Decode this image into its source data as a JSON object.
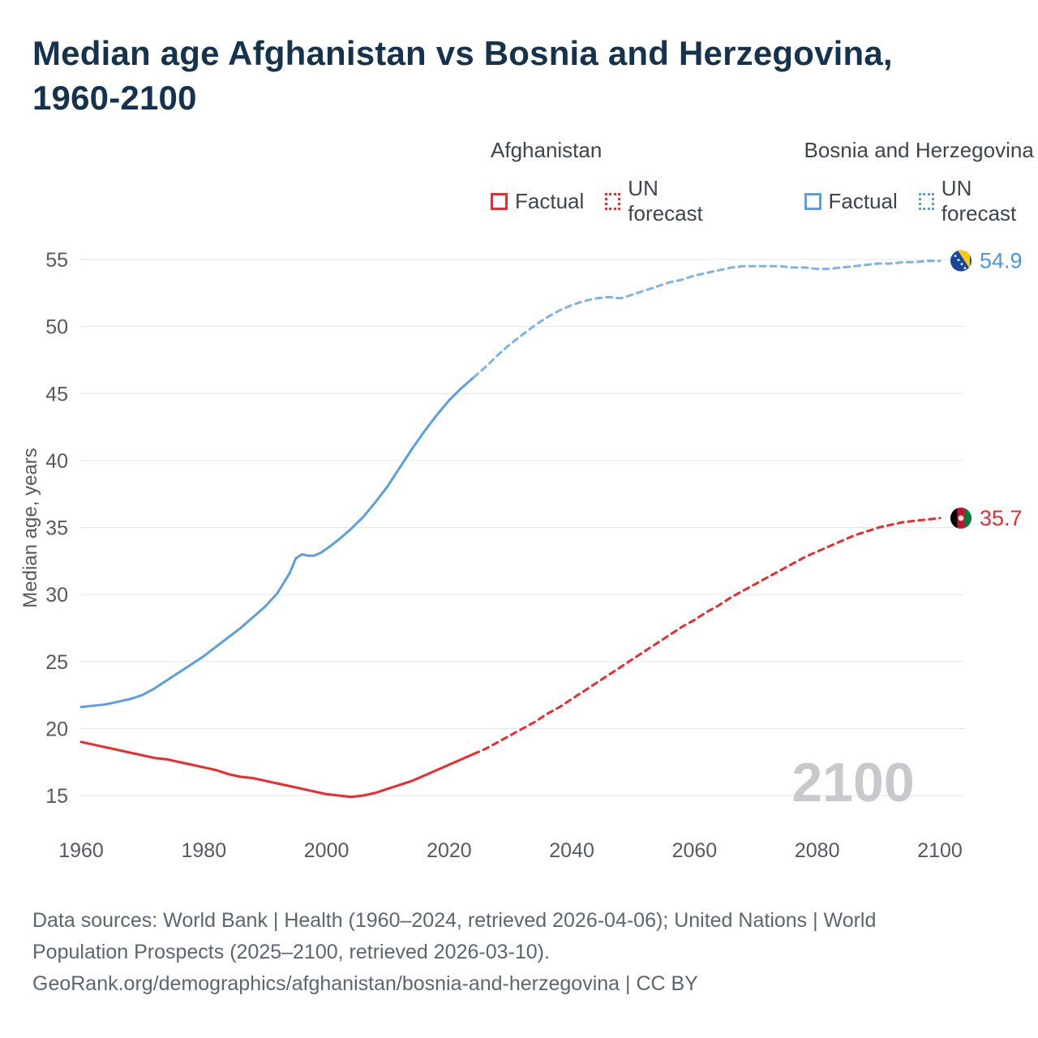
{
  "title": "Median age Afghanistan vs Bosnia and Herzegovina, 1960-2100",
  "legend": {
    "position": "top-right",
    "groups": [
      {
        "name": "Afghanistan",
        "color": "#ee2a2e",
        "items": [
          {
            "label": "Factual",
            "style": "solid"
          },
          {
            "label": "UN forecast",
            "style": "dotted"
          }
        ]
      },
      {
        "name": "Bosnia and Herzegovina",
        "color": "#5b9fe3",
        "items": [
          {
            "label": "Factual",
            "style": "solid"
          },
          {
            "label": "UN forecast",
            "style": "dotted"
          }
        ]
      }
    ]
  },
  "chart_data": {
    "type": "line",
    "title": "Median age Afghanistan vs Bosnia and Herzegovina, 1960-2100",
    "xlabel": "",
    "ylabel": "Median age, years",
    "xlim": [
      1960,
      2100
    ],
    "ylim": [
      15,
      55
    ],
    "x_ticks": [
      1960,
      1980,
      2000,
      2020,
      2040,
      2060,
      2080,
      2100
    ],
    "y_ticks": [
      15,
      20,
      25,
      30,
      35,
      40,
      45,
      50,
      55
    ],
    "grid": "horizontal",
    "legend_position": "top-right",
    "watermark": "2100",
    "series": [
      {
        "id": "afghanistan-factual",
        "name": "Afghanistan Factual",
        "color": "#ee2a2e",
        "dash": "solid",
        "points": [
          [
            1960,
            19.0
          ],
          [
            1962,
            18.8
          ],
          [
            1964,
            18.6
          ],
          [
            1966,
            18.4
          ],
          [
            1968,
            18.2
          ],
          [
            1970,
            18.0
          ],
          [
            1972,
            17.8
          ],
          [
            1974,
            17.7
          ],
          [
            1976,
            17.5
          ],
          [
            1978,
            17.3
          ],
          [
            1980,
            17.1
          ],
          [
            1982,
            16.9
          ],
          [
            1984,
            16.6
          ],
          [
            1986,
            16.4
          ],
          [
            1988,
            16.3
          ],
          [
            1990,
            16.1
          ],
          [
            1992,
            15.9
          ],
          [
            1994,
            15.7
          ],
          [
            1996,
            15.5
          ],
          [
            1998,
            15.3
          ],
          [
            2000,
            15.1
          ],
          [
            2002,
            15.0
          ],
          [
            2004,
            14.9
          ],
          [
            2006,
            15.0
          ],
          [
            2008,
            15.2
          ],
          [
            2010,
            15.5
          ],
          [
            2012,
            15.8
          ],
          [
            2014,
            16.1
          ],
          [
            2016,
            16.5
          ],
          [
            2018,
            16.9
          ],
          [
            2020,
            17.3
          ],
          [
            2022,
            17.7
          ],
          [
            2024,
            18.1
          ]
        ]
      },
      {
        "id": "afghanistan-forecast",
        "name": "Afghanistan UN forecast",
        "color": "#ee2a2e",
        "dash": "dashed",
        "points": [
          [
            2024,
            18.1
          ],
          [
            2026,
            18.5
          ],
          [
            2028,
            19.0
          ],
          [
            2030,
            19.5
          ],
          [
            2032,
            20.0
          ],
          [
            2034,
            20.5
          ],
          [
            2036,
            21.1
          ],
          [
            2038,
            21.6
          ],
          [
            2040,
            22.2
          ],
          [
            2042,
            22.8
          ],
          [
            2044,
            23.4
          ],
          [
            2046,
            24.0
          ],
          [
            2048,
            24.6
          ],
          [
            2050,
            25.2
          ],
          [
            2052,
            25.8
          ],
          [
            2054,
            26.4
          ],
          [
            2056,
            27.0
          ],
          [
            2058,
            27.6
          ],
          [
            2060,
            28.1
          ],
          [
            2062,
            28.7
          ],
          [
            2064,
            29.2
          ],
          [
            2066,
            29.8
          ],
          [
            2068,
            30.3
          ],
          [
            2070,
            30.8
          ],
          [
            2072,
            31.3
          ],
          [
            2074,
            31.8
          ],
          [
            2076,
            32.3
          ],
          [
            2078,
            32.8
          ],
          [
            2080,
            33.2
          ],
          [
            2082,
            33.6
          ],
          [
            2084,
            34.0
          ],
          [
            2086,
            34.4
          ],
          [
            2088,
            34.7
          ],
          [
            2090,
            35.0
          ],
          [
            2092,
            35.2
          ],
          [
            2094,
            35.4
          ],
          [
            2096,
            35.5
          ],
          [
            2098,
            35.6
          ],
          [
            2100,
            35.7
          ]
        ]
      },
      {
        "id": "bosnia-factual",
        "name": "Bosnia and Herzegovina Factual",
        "color": "#5b9fe3",
        "dash": "solid",
        "points": [
          [
            1960,
            21.6
          ],
          [
            1962,
            21.7
          ],
          [
            1964,
            21.8
          ],
          [
            1966,
            22.0
          ],
          [
            1968,
            22.2
          ],
          [
            1970,
            22.5
          ],
          [
            1972,
            23.0
          ],
          [
            1974,
            23.6
          ],
          [
            1976,
            24.2
          ],
          [
            1978,
            24.8
          ],
          [
            1980,
            25.4
          ],
          [
            1982,
            26.1
          ],
          [
            1984,
            26.8
          ],
          [
            1986,
            27.5
          ],
          [
            1988,
            28.3
          ],
          [
            1990,
            29.1
          ],
          [
            1992,
            30.1
          ],
          [
            1994,
            31.6
          ],
          [
            1995,
            32.7
          ],
          [
            1996,
            33.0
          ],
          [
            1997,
            32.9
          ],
          [
            1998,
            32.9
          ],
          [
            1999,
            33.1
          ],
          [
            2000,
            33.4
          ],
          [
            2002,
            34.1
          ],
          [
            2004,
            34.9
          ],
          [
            2006,
            35.8
          ],
          [
            2008,
            36.9
          ],
          [
            2010,
            38.1
          ],
          [
            2012,
            39.5
          ],
          [
            2014,
            40.9
          ],
          [
            2016,
            42.2
          ],
          [
            2018,
            43.4
          ],
          [
            2020,
            44.5
          ],
          [
            2022,
            45.4
          ],
          [
            2024,
            46.2
          ]
        ]
      },
      {
        "id": "bosnia-forecast",
        "name": "Bosnia and Herzegovina UN forecast",
        "color": "#7db3ea",
        "dash": "dashed",
        "points": [
          [
            2024,
            46.2
          ],
          [
            2026,
            47.0
          ],
          [
            2028,
            47.9
          ],
          [
            2030,
            48.7
          ],
          [
            2032,
            49.4
          ],
          [
            2034,
            50.1
          ],
          [
            2036,
            50.7
          ],
          [
            2038,
            51.2
          ],
          [
            2040,
            51.6
          ],
          [
            2042,
            51.9
          ],
          [
            2044,
            52.1
          ],
          [
            2046,
            52.2
          ],
          [
            2048,
            52.1
          ],
          [
            2050,
            52.4
          ],
          [
            2052,
            52.7
          ],
          [
            2054,
            53.0
          ],
          [
            2056,
            53.3
          ],
          [
            2058,
            53.5
          ],
          [
            2060,
            53.8
          ],
          [
            2062,
            54.0
          ],
          [
            2064,
            54.2
          ],
          [
            2066,
            54.4
          ],
          [
            2068,
            54.5
          ],
          [
            2070,
            54.5
          ],
          [
            2072,
            54.5
          ],
          [
            2074,
            54.5
          ],
          [
            2076,
            54.4
          ],
          [
            2078,
            54.4
          ],
          [
            2080,
            54.3
          ],
          [
            2082,
            54.3
          ],
          [
            2084,
            54.4
          ],
          [
            2086,
            54.5
          ],
          [
            2088,
            54.6
          ],
          [
            2090,
            54.7
          ],
          [
            2092,
            54.7
          ],
          [
            2094,
            54.8
          ],
          [
            2096,
            54.8
          ],
          [
            2098,
            54.9
          ],
          [
            2100,
            54.9
          ]
        ]
      }
    ],
    "end_labels": [
      {
        "text": "54.9",
        "value": 54.9,
        "color": "#4e95d9",
        "flag": "bosnia-and-herzegovina"
      },
      {
        "text": "35.7",
        "value": 35.7,
        "color": "#ee2a2e",
        "flag": "afghanistan"
      }
    ]
  },
  "footer": {
    "lines": [
      "Data sources: World Bank | Health (1960–2024, retrieved 2026-04-06); United Nations | World",
      "Population Prospects (2025–2100, retrieved 2026-03-10).",
      "GeoRank.org/demographics/afghanistan/bosnia-and-herzegovina | CC BY"
    ]
  }
}
